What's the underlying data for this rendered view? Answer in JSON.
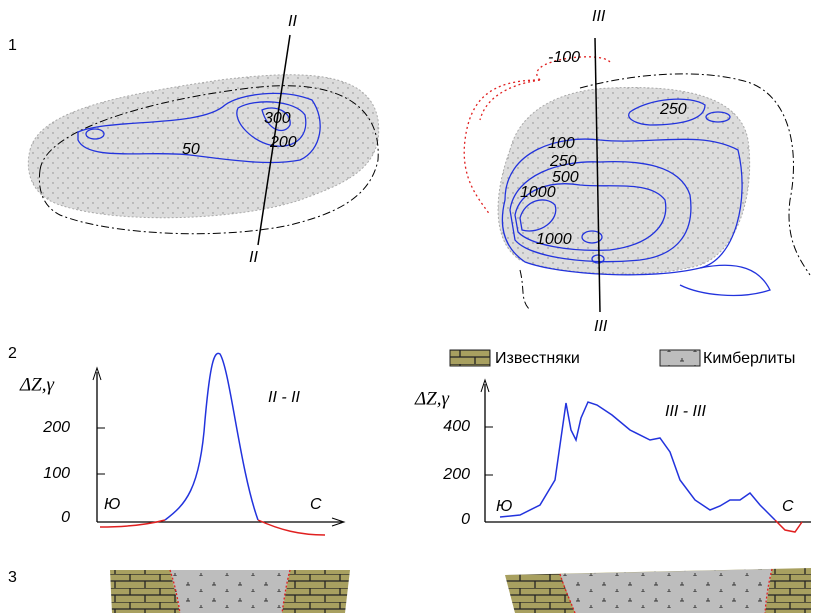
{
  "panel_labels": [
    "1",
    "2",
    "3"
  ],
  "map_left": {
    "section_top": "II",
    "section_bottom": "II",
    "contours": [
      "300",
      "200",
      "50"
    ]
  },
  "map_right": {
    "section_top": "III",
    "section_bottom": "III",
    "contours": [
      "-100",
      "250",
      "100",
      "250",
      "500",
      "1000",
      "1000"
    ]
  },
  "legend": [
    "Известняки",
    "Кимберлиты"
  ],
  "profile_left": {
    "y_axis_label": "ΔZ,γ",
    "title": "II - II",
    "yticks": [
      "200",
      "100",
      "0"
    ],
    "south": "Ю",
    "north": "С"
  },
  "profile_right": {
    "y_axis_label": "ΔZ,γ",
    "title": "III - III",
    "yticks": [
      "400",
      "200",
      "0"
    ],
    "south": "Ю",
    "north": "С"
  }
}
